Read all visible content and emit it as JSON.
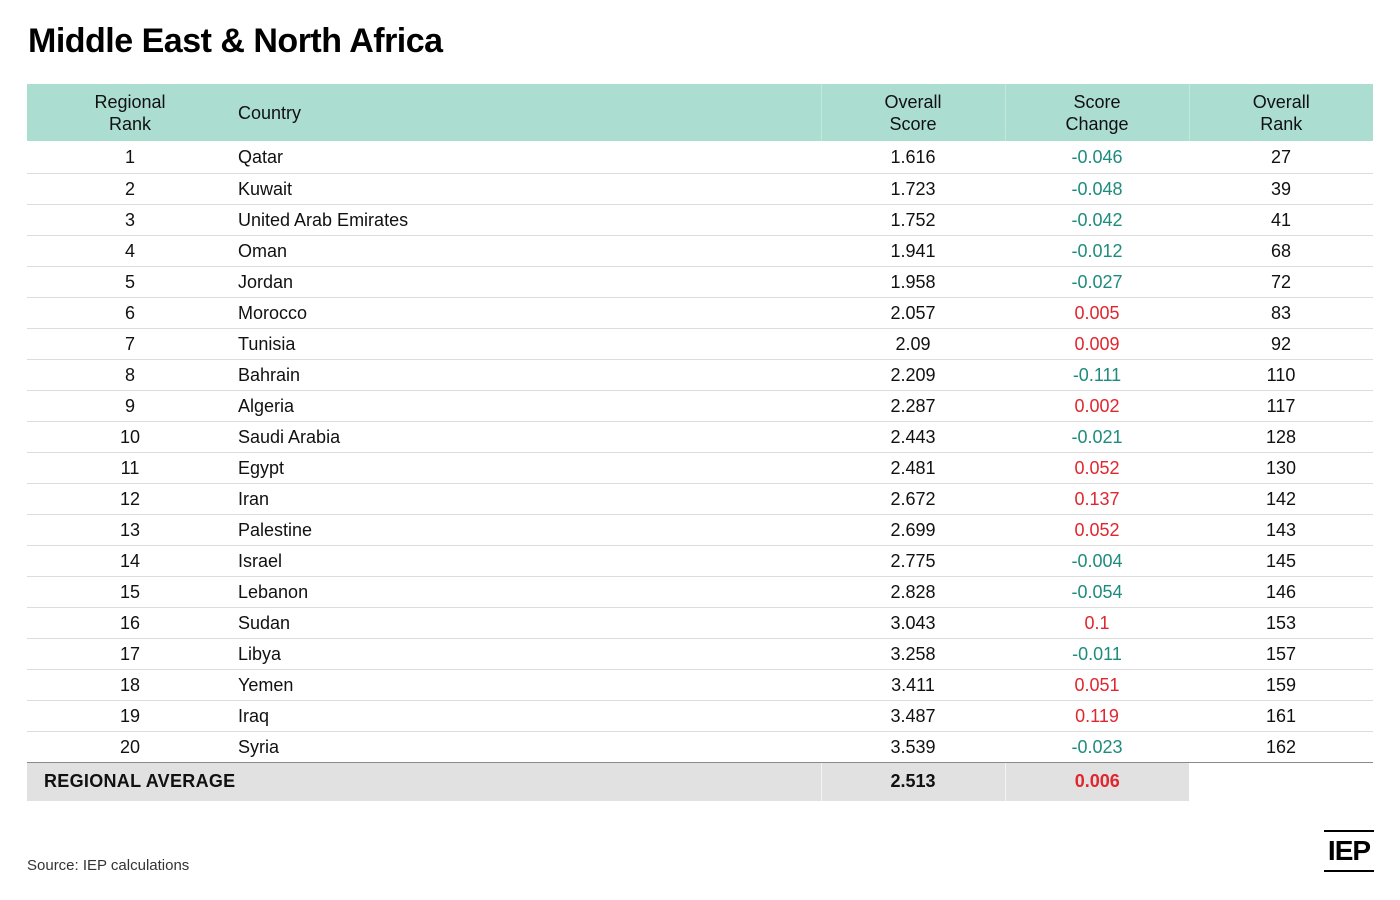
{
  "title": "Middle East & North Africa",
  "source": "Source: IEP calculations",
  "logo": "IEP",
  "colors": {
    "header_bg": "#abddd1",
    "negative_change": "#1e8b7d",
    "positive_change": "#e0262e",
    "average_bg": "#e1e1e1"
  },
  "chart_data": {
    "type": "table",
    "title": "Middle East & North Africa",
    "columns": [
      "Regional\nRank",
      "Country",
      "Overall\nScore",
      "Score\nChange",
      "Overall\nRank"
    ],
    "rows": [
      {
        "regional_rank": "1",
        "country": "Qatar",
        "overall_score": "1.616",
        "score_change": "-0.046",
        "overall_rank": "27"
      },
      {
        "regional_rank": "2",
        "country": "Kuwait",
        "overall_score": "1.723",
        "score_change": "-0.048",
        "overall_rank": "39"
      },
      {
        "regional_rank": "3",
        "country": "United Arab Emirates",
        "overall_score": "1.752",
        "score_change": "-0.042",
        "overall_rank": "41"
      },
      {
        "regional_rank": "4",
        "country": "Oman",
        "overall_score": "1.941",
        "score_change": "-0.012",
        "overall_rank": "68"
      },
      {
        "regional_rank": "5",
        "country": "Jordan",
        "overall_score": "1.958",
        "score_change": "-0.027",
        "overall_rank": "72"
      },
      {
        "regional_rank": "6",
        "country": "Morocco",
        "overall_score": "2.057",
        "score_change": "0.005",
        "overall_rank": "83"
      },
      {
        "regional_rank": "7",
        "country": "Tunisia",
        "overall_score": "2.09",
        "score_change": "0.009",
        "overall_rank": "92"
      },
      {
        "regional_rank": "8",
        "country": "Bahrain",
        "overall_score": "2.209",
        "score_change": "-0.111",
        "overall_rank": "110"
      },
      {
        "regional_rank": "9",
        "country": "Algeria",
        "overall_score": "2.287",
        "score_change": "0.002",
        "overall_rank": "117"
      },
      {
        "regional_rank": "10",
        "country": "Saudi Arabia",
        "overall_score": "2.443",
        "score_change": "-0.021",
        "overall_rank": "128"
      },
      {
        "regional_rank": "11",
        "country": "Egypt",
        "overall_score": "2.481",
        "score_change": "0.052",
        "overall_rank": "130"
      },
      {
        "regional_rank": "12",
        "country": "Iran",
        "overall_score": "2.672",
        "score_change": "0.137",
        "overall_rank": "142"
      },
      {
        "regional_rank": "13",
        "country": "Palestine",
        "overall_score": "2.699",
        "score_change": "0.052",
        "overall_rank": "143"
      },
      {
        "regional_rank": "14",
        "country": "Israel",
        "overall_score": "2.775",
        "score_change": "-0.004",
        "overall_rank": "145"
      },
      {
        "regional_rank": "15",
        "country": "Lebanon",
        "overall_score": "2.828",
        "score_change": "-0.054",
        "overall_rank": "146"
      },
      {
        "regional_rank": "16",
        "country": "Sudan",
        "overall_score": "3.043",
        "score_change": "0.1",
        "overall_rank": "153"
      },
      {
        "regional_rank": "17",
        "country": "Libya",
        "overall_score": "3.258",
        "score_change": "-0.011",
        "overall_rank": "157"
      },
      {
        "regional_rank": "18",
        "country": "Yemen",
        "overall_score": "3.411",
        "score_change": "0.051",
        "overall_rank": "159"
      },
      {
        "regional_rank": "19",
        "country": "Iraq",
        "overall_score": "3.487",
        "score_change": "0.119",
        "overall_rank": "161"
      },
      {
        "regional_rank": "20",
        "country": "Syria",
        "overall_score": "3.539",
        "score_change": "-0.023",
        "overall_rank": "162"
      }
    ],
    "average": {
      "label": "REGIONAL AVERAGE",
      "overall_score": "2.513",
      "score_change": "0.006"
    }
  }
}
